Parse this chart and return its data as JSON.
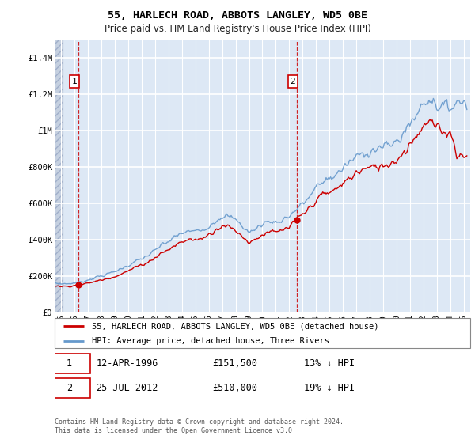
{
  "title": "55, HARLECH ROAD, ABBOTS LANGLEY, WD5 0BE",
  "subtitle": "Price paid vs. HM Land Registry's House Price Index (HPI)",
  "legend_line1": "55, HARLECH ROAD, ABBOTS LANGLEY, WD5 0BE (detached house)",
  "legend_line2": "HPI: Average price, detached house, Three Rivers",
  "annotation1_label": "1",
  "annotation1_date": "12-APR-1996",
  "annotation1_price": "£151,500",
  "annotation1_note": "13% ↓ HPI",
  "annotation1_year": 1996.28,
  "annotation1_value": 151500,
  "annotation2_label": "2",
  "annotation2_date": "25-JUL-2012",
  "annotation2_price": "£510,000",
  "annotation2_note": "19% ↓ HPI",
  "annotation2_year": 2012.56,
  "annotation2_value": 510000,
  "color_price": "#cc0000",
  "color_hpi": "#6699cc",
  "color_annotation_box": "#cc0000",
  "ylim": [
    0,
    1500000
  ],
  "xlim_start": 1994.5,
  "xlim_end": 2025.5,
  "background_color": "#dde8f5",
  "hatch_edgecolor": "#b0bcd0",
  "grid_color": "#ffffff",
  "footer": "Contains HM Land Registry data © Crown copyright and database right 2024.\nThis data is licensed under the Open Government Licence v3.0.",
  "yticks": [
    0,
    200000,
    400000,
    600000,
    800000,
    1000000,
    1200000,
    1400000
  ],
  "ytick_labels": [
    "£0",
    "£200K",
    "£400K",
    "£600K",
    "£800K",
    "£1M",
    "£1.2M",
    "£1.4M"
  ],
  "xticks": [
    1995,
    1996,
    1997,
    1998,
    1999,
    2000,
    2001,
    2002,
    2003,
    2004,
    2005,
    2006,
    2007,
    2008,
    2009,
    2010,
    2011,
    2012,
    2013,
    2014,
    2015,
    2016,
    2017,
    2018,
    2019,
    2020,
    2021,
    2022,
    2023,
    2024,
    2025
  ],
  "xtick_labels": [
    "95",
    "96",
    "97",
    "98",
    "99",
    "00",
    "01",
    "02",
    "03",
    "04",
    "05",
    "06",
    "07",
    "08",
    "09",
    "10",
    "11",
    "12",
    "13",
    "14",
    "15",
    "16",
    "17",
    "18",
    "19",
    "20",
    "21",
    "22",
    "23",
    "24",
    "25"
  ]
}
